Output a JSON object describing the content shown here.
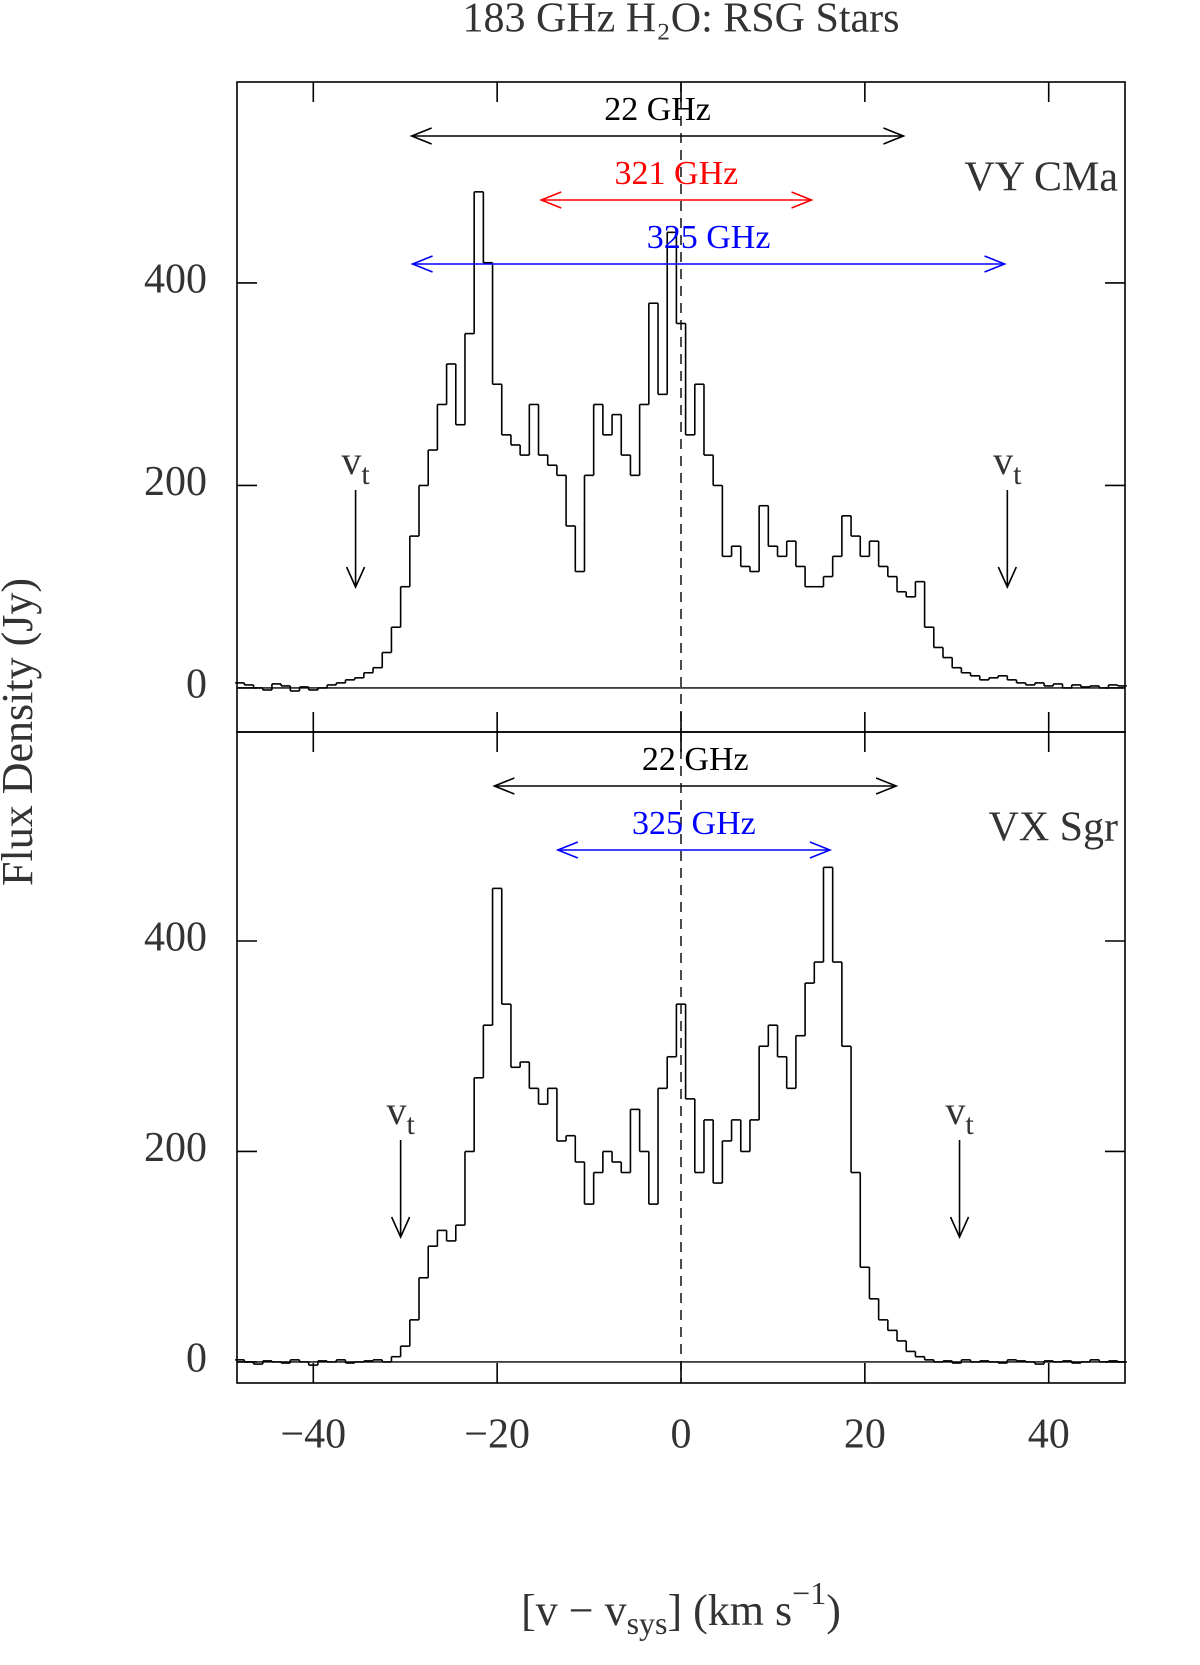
{
  "title": "183 GHz H₂O: RSG Stars",
  "ylabel": "Flux Density (Jy)",
  "xlabel": [
    "[v − v",
    "sys",
    "] (km s",
    "−1",
    ")"
  ],
  "xlim": [
    -48.3,
    48.3
  ],
  "xticks": [
    {
      "value": -40,
      "label": "−40"
    },
    {
      "value": -20,
      "label": "−20"
    },
    0,
    20,
    40
  ],
  "chart_data": [
    {
      "type": "step",
      "name": "VY CMa",
      "color": "#000000",
      "ylim": [
        -43.5,
        598.5
      ],
      "yticks": [
        0,
        200,
        400
      ],
      "baseline": 0,
      "reference_x": 0,
      "x": [
        -48,
        -47,
        -46,
        -45,
        -44,
        -43,
        -42,
        -41,
        -40,
        -39,
        -38,
        -37,
        -36,
        -35,
        -34,
        -33,
        -32,
        -31,
        -30,
        -29,
        -28,
        -27,
        -26,
        -25,
        -24,
        -23,
        -22,
        -21,
        -20,
        -19,
        -18,
        -17,
        -16,
        -15,
        -14,
        -13,
        -12,
        -11,
        -10,
        -9,
        -8,
        -7,
        -6,
        -5,
        -4,
        -3,
        -2,
        -1,
        0,
        1,
        2,
        3,
        4,
        5,
        6,
        7,
        8,
        9,
        10,
        11,
        12,
        13,
        14,
        15,
        16,
        17,
        18,
        19,
        20,
        21,
        22,
        23,
        24,
        25,
        26,
        27,
        28,
        29,
        30,
        31,
        32,
        33,
        34,
        35,
        36,
        37,
        38,
        39,
        40,
        41,
        42,
        43,
        44,
        45,
        46,
        47,
        48
      ],
      "values": [
        5,
        3,
        0,
        -2,
        4,
        2,
        -3,
        1,
        -2,
        0,
        3,
        5,
        8,
        10,
        15,
        20,
        35,
        60,
        100,
        150,
        200,
        235,
        280,
        320,
        260,
        350,
        490,
        420,
        300,
        250,
        240,
        230,
        280,
        230,
        220,
        210,
        160,
        115,
        210,
        280,
        250,
        270,
        230,
        210,
        280,
        380,
        290,
        450,
        360,
        250,
        300,
        230,
        200,
        130,
        140,
        120,
        115,
        180,
        140,
        130,
        145,
        120,
        100,
        100,
        110,
        130,
        170,
        150,
        130,
        145,
        120,
        110,
        95,
        90,
        105,
        60,
        40,
        30,
        20,
        15,
        12,
        8,
        10,
        12,
        8,
        5,
        3,
        5,
        2,
        4,
        0,
        3,
        1,
        2,
        0,
        3,
        2
      ],
      "arrows": [
        {
          "label": "22 GHz",
          "color": "#000000",
          "from": -29.3,
          "to": 24.2
        },
        {
          "label": "321 GHz",
          "color": "#ff0000",
          "from": -15.2,
          "to": 14.2
        },
        {
          "label": "325 GHz",
          "color": "#0000ff",
          "from": -29.2,
          "to": 35.2
        }
      ],
      "velocity_markers": {
        "label": "v",
        "sub": "t",
        "x": [
          -35.4,
          35.5
        ]
      }
    },
    {
      "type": "step",
      "name": "VX Sgr",
      "color": "#000000",
      "ylim": [
        -20,
        598.6
      ],
      "yticks": [
        0,
        200,
        400
      ],
      "baseline": 0,
      "reference_x": 0,
      "x": [
        -48,
        -47,
        -46,
        -45,
        -44,
        -43,
        -42,
        -41,
        -40,
        -39,
        -38,
        -37,
        -36,
        -35,
        -34,
        -33,
        -32,
        -31,
        -30,
        -29,
        -28,
        -27,
        -26,
        -25,
        -24,
        -23,
        -22,
        -21,
        -20,
        -19,
        -18,
        -17,
        -16,
        -15,
        -14,
        -13,
        -12,
        -11,
        -10,
        -9,
        -8,
        -7,
        -6,
        -5,
        -4,
        -3,
        -2,
        -1,
        0,
        1,
        2,
        3,
        4,
        5,
        6,
        7,
        8,
        9,
        10,
        11,
        12,
        13,
        14,
        15,
        16,
        17,
        18,
        19,
        20,
        21,
        22,
        23,
        24,
        25,
        26,
        27,
        28,
        29,
        30,
        31,
        32,
        33,
        34,
        35,
        36,
        37,
        38,
        39,
        40,
        41,
        42,
        43,
        44,
        45,
        46,
        47,
        48
      ],
      "values": [
        2,
        0,
        -2,
        1,
        0,
        -1,
        2,
        0,
        -3,
        1,
        0,
        2,
        -1,
        0,
        1,
        2,
        0,
        5,
        15,
        40,
        80,
        110,
        125,
        115,
        130,
        200,
        270,
        320,
        450,
        340,
        280,
        285,
        260,
        245,
        260,
        210,
        215,
        190,
        150,
        180,
        200,
        190,
        180,
        240,
        200,
        150,
        260,
        290,
        340,
        250,
        180,
        230,
        170,
        210,
        230,
        200,
        230,
        300,
        320,
        290,
        260,
        310,
        360,
        380,
        470,
        380,
        300,
        180,
        90,
        60,
        40,
        30,
        20,
        10,
        5,
        2,
        0,
        1,
        -1,
        2,
        0,
        1,
        0,
        -1,
        2,
        1,
        0,
        -2,
        1,
        0,
        1,
        -1,
        0,
        2,
        0,
        1,
        0
      ],
      "arrows": [
        {
          "label": "22 GHz",
          "color": "#000000",
          "from": -20.3,
          "to": 23.4
        },
        {
          "label": "325 GHz",
          "color": "#0000ff",
          "from": -13.4,
          "to": 16.2
        }
      ],
      "velocity_markers": {
        "label": "v",
        "sub": "t",
        "x": [
          -30.5,
          30.3
        ]
      }
    }
  ]
}
